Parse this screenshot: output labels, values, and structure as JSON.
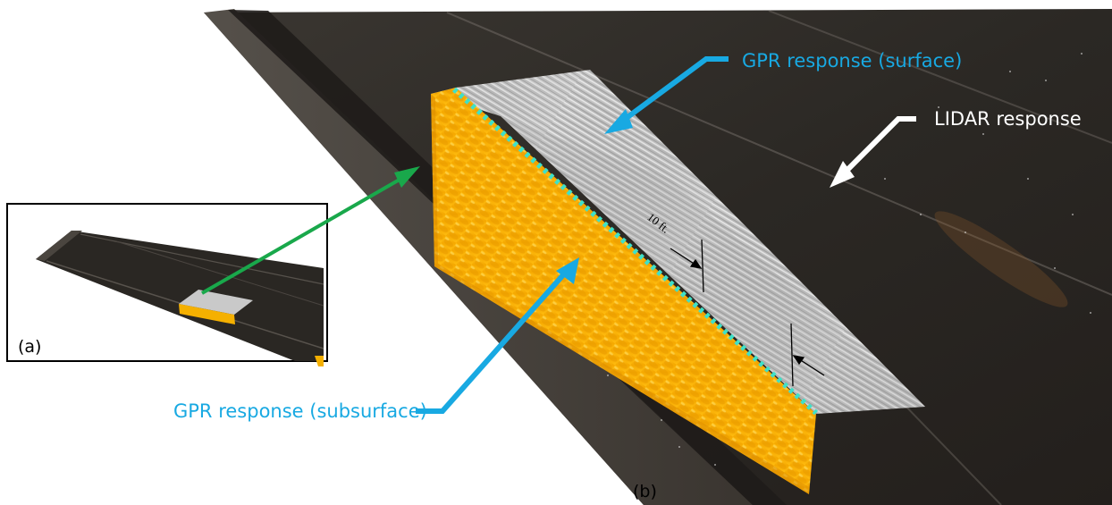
{
  "labels": {
    "gpr_surface": "GPR response (surface)",
    "lidar": "LIDAR response",
    "gpr_subsurface": "GPR response (subsurface)",
    "dimension": "10 ft.",
    "panel_a": "(a)",
    "panel_b": "(b)"
  },
  "colors": {
    "callout_blue": "#18a9e2",
    "lidar_white": "#ffffff",
    "link_green": "#19a84b",
    "gpr_orange": "#f7b500",
    "gpr_gray": "#b8b8b8",
    "road_dark": "#2e2b27",
    "cyan_edge": "#3fe0c8"
  }
}
